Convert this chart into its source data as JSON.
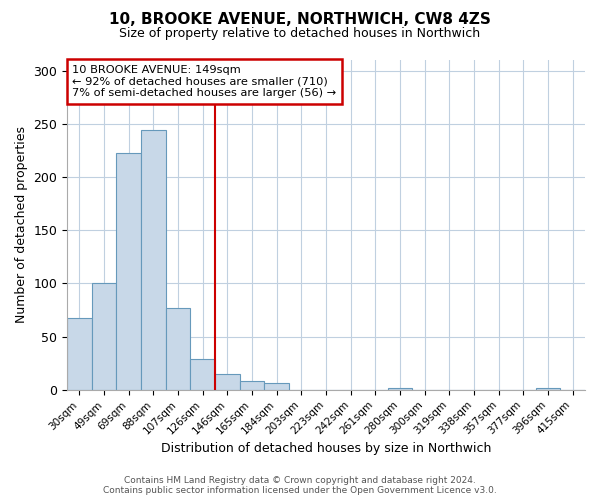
{
  "title": "10, BROOKE AVENUE, NORTHWICH, CW8 4ZS",
  "subtitle": "Size of property relative to detached houses in Northwich",
  "xlabel": "Distribution of detached houses by size in Northwich",
  "ylabel": "Number of detached properties",
  "bar_labels": [
    "30sqm",
    "49sqm",
    "69sqm",
    "88sqm",
    "107sqm",
    "126sqm",
    "146sqm",
    "165sqm",
    "184sqm",
    "203sqm",
    "223sqm",
    "242sqm",
    "261sqm",
    "280sqm",
    "300sqm",
    "319sqm",
    "338sqm",
    "357sqm",
    "377sqm",
    "396sqm",
    "415sqm"
  ],
  "bar_heights": [
    68,
    100,
    223,
    244,
    77,
    29,
    15,
    8,
    6,
    0,
    0,
    0,
    0,
    2,
    0,
    0,
    0,
    0,
    0,
    2,
    0
  ],
  "bar_color": "#c8d8e8",
  "bar_edge_color": "#6699bb",
  "vline_x": 5.5,
  "vline_color": "#cc0000",
  "ylim": [
    0,
    310
  ],
  "yticks": [
    0,
    50,
    100,
    150,
    200,
    250,
    300
  ],
  "annotation_title": "10 BROOKE AVENUE: 149sqm",
  "annotation_line1": "← 92% of detached houses are smaller (710)",
  "annotation_line2": "7% of semi-detached houses are larger (56) →",
  "annotation_box_color": "#ffffff",
  "annotation_box_edge": "#cc0000",
  "footer1": "Contains HM Land Registry data © Crown copyright and database right 2024.",
  "footer2": "Contains public sector information licensed under the Open Government Licence v3.0.",
  "background_color": "#ffffff",
  "grid_color": "#c0d0e0"
}
